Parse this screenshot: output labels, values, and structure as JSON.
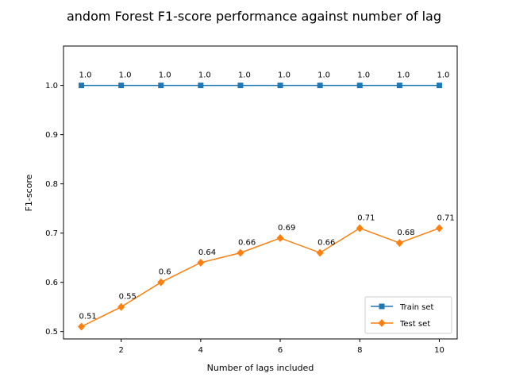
{
  "chart_data": {
    "type": "line",
    "title": "andom Forest F1-score performance against number of lag",
    "xlabel": "Number of lags included",
    "ylabel": "F1-score",
    "x": [
      1,
      2,
      3,
      4,
      5,
      6,
      7,
      8,
      9,
      10
    ],
    "xlim": [
      0.55,
      10.45
    ],
    "ylim": [
      0.485,
      1.08
    ],
    "xticks": [
      2,
      4,
      6,
      8,
      10
    ],
    "yticks": [
      0.5,
      0.6,
      0.7,
      0.8,
      0.9,
      1.0
    ],
    "ytick_labels": [
      "0.5",
      "0.6",
      "0.7",
      "0.8",
      "0.9",
      "1.0"
    ],
    "grid": false,
    "legend_position": "lower-right",
    "series": [
      {
        "name": "Train set",
        "color": "#1f77b4",
        "marker": "square",
        "values": [
          1.0,
          1.0,
          1.0,
          1.0,
          1.0,
          1.0,
          1.0,
          1.0,
          1.0,
          1.0
        ],
        "labels": [
          "1.0",
          "1.0",
          "1.0",
          "1.0",
          "1.0",
          "1.0",
          "1.0",
          "1.0",
          "1.0",
          "1.0"
        ]
      },
      {
        "name": "Test set",
        "color": "#ff7f0e",
        "marker": "diamond",
        "values": [
          0.51,
          0.55,
          0.6,
          0.64,
          0.66,
          0.69,
          0.66,
          0.71,
          0.68,
          0.71
        ],
        "labels": [
          "0.51",
          "0.55",
          "0.6",
          "0.64",
          "0.66",
          "0.69",
          "0.66",
          "0.71",
          "0.68",
          "0.71"
        ]
      }
    ]
  }
}
